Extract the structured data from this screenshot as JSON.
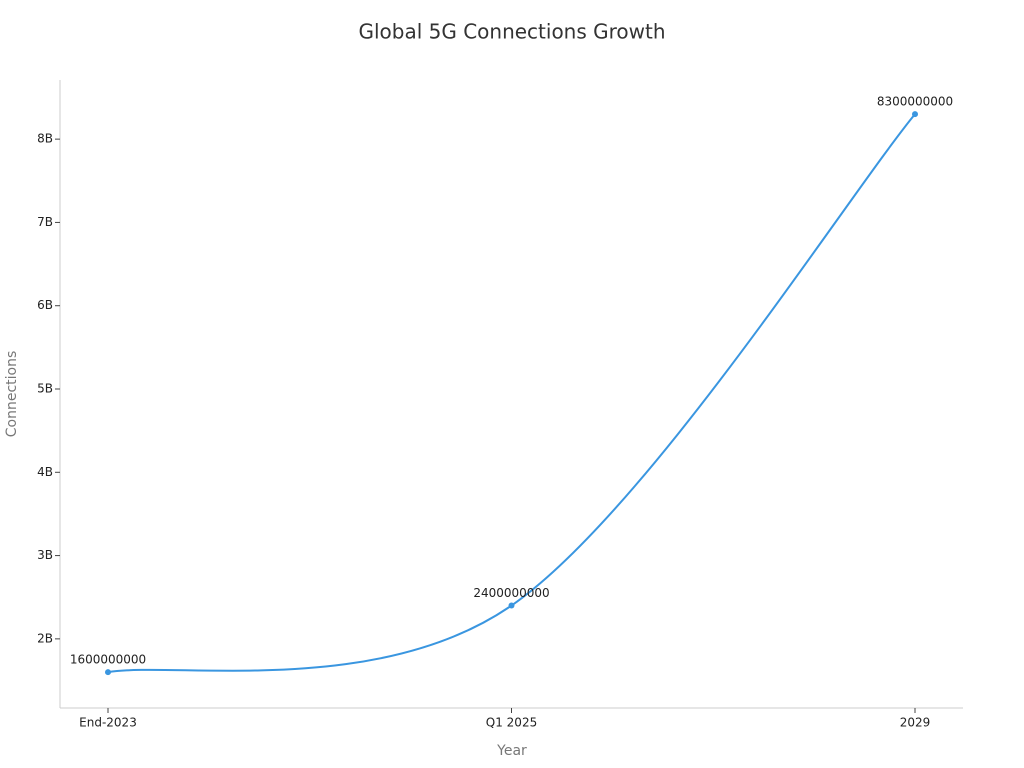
{
  "chart_data": {
    "type": "line",
    "title": "Global 5G Connections Growth",
    "x_label": "Year",
    "y_label": "Connections",
    "categories": [
      "End-2023",
      "Q1 2025",
      "2029"
    ],
    "values": [
      1600000000,
      2400000000,
      8300000000
    ],
    "color": "#3a96e0",
    "ylim": [
      1170000000,
      8710000000
    ],
    "yticks": [
      {
        "value": 2000000000,
        "label": "2B"
      },
      {
        "value": 3000000000,
        "label": "3B"
      },
      {
        "value": 4000000000,
        "label": "4B"
      },
      {
        "value": 5000000000,
        "label": "5B"
      },
      {
        "value": 6000000000,
        "label": "6B"
      },
      {
        "value": 7000000000,
        "label": "7B"
      },
      {
        "value": 8000000000,
        "label": "8B"
      }
    ],
    "grid": false
  }
}
